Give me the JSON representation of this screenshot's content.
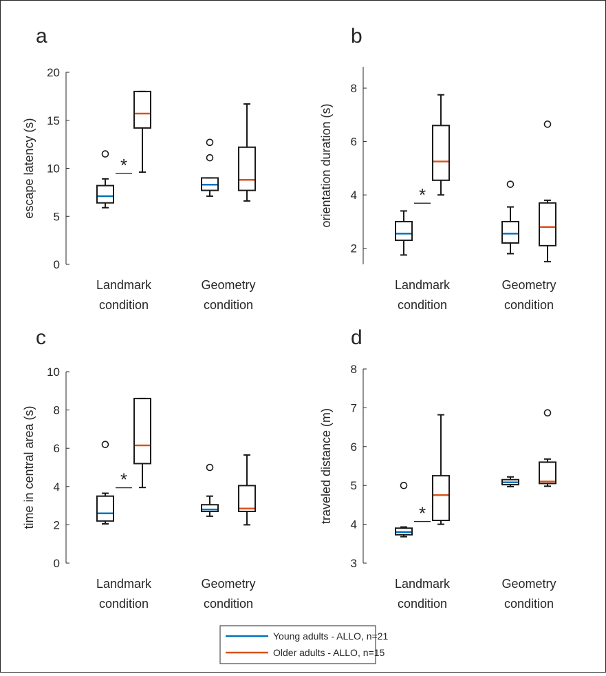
{
  "colors": {
    "young": "#0072BD",
    "older": "#D95319",
    "ink": "#262626"
  },
  "legend": {
    "entries": [
      {
        "label": "Young adults - ALLO, n=21",
        "series": "young"
      },
      {
        "label": "Older adults - ALLO, n=15",
        "series": "older"
      }
    ]
  },
  "chart_data": [
    {
      "panel_label": "a",
      "type": "box",
      "ylabel": "escape latency (s)",
      "ylim": [
        0,
        20
      ],
      "yticks": [
        0,
        5,
        10,
        15,
        20
      ],
      "categories": [
        [
          "Landmark",
          "condition"
        ],
        [
          "Geometry",
          "condition"
        ]
      ],
      "significance": [
        {
          "category": 0,
          "label": "*"
        }
      ],
      "groups": [
        {
          "category": 0,
          "series": "young",
          "whisker_low": 5.9,
          "q1": 6.4,
          "median": 7.1,
          "q3": 8.2,
          "whisker_high": 8.9,
          "outliers": [
            11.5
          ]
        },
        {
          "category": 0,
          "series": "older",
          "whisker_low": 9.6,
          "q1": 14.2,
          "median": 15.7,
          "q3": 18.0,
          "whisker_high": 18.0,
          "outliers": []
        },
        {
          "category": 1,
          "series": "young",
          "whisker_low": 7.1,
          "q1": 7.7,
          "median": 8.3,
          "q3": 9.0,
          "whisker_high": 9.0,
          "outliers": [
            11.1,
            12.7
          ]
        },
        {
          "category": 1,
          "series": "older",
          "whisker_low": 6.6,
          "q1": 7.7,
          "median": 8.8,
          "q3": 12.2,
          "whisker_high": 16.7,
          "outliers": []
        }
      ]
    },
    {
      "panel_label": "b",
      "type": "box",
      "ylabel": "orientation duration (s)",
      "ylim": [
        1.4,
        8.8
      ],
      "yticks": [
        2,
        4,
        6,
        8
      ],
      "categories": [
        [
          "Landmark",
          "condition"
        ],
        [
          "Geometry",
          "condition"
        ]
      ],
      "significance": [
        {
          "category": 0,
          "label": "*"
        }
      ],
      "groups": [
        {
          "category": 0,
          "series": "young",
          "whisker_low": 1.75,
          "q1": 2.3,
          "median": 2.55,
          "q3": 3.0,
          "whisker_high": 3.4,
          "outliers": []
        },
        {
          "category": 0,
          "series": "older",
          "whisker_low": 4.0,
          "q1": 4.55,
          "median": 5.25,
          "q3": 6.6,
          "whisker_high": 7.75,
          "outliers": []
        },
        {
          "category": 1,
          "series": "young",
          "whisker_low": 1.8,
          "q1": 2.2,
          "median": 2.55,
          "q3": 3.0,
          "whisker_high": 3.55,
          "outliers": [
            4.4
          ]
        },
        {
          "category": 1,
          "series": "older",
          "whisker_low": 1.5,
          "q1": 2.1,
          "median": 2.8,
          "q3": 3.7,
          "whisker_high": 3.8,
          "outliers": [
            6.65
          ]
        }
      ]
    },
    {
      "panel_label": "c",
      "type": "box",
      "ylabel": "time in central area (s)",
      "ylim": [
        0,
        10
      ],
      "yticks": [
        0,
        2,
        4,
        6,
        8,
        10
      ],
      "categories": [
        [
          "Landmark",
          "condition"
        ],
        [
          "Geometry",
          "condition"
        ]
      ],
      "significance": [
        {
          "category": 0,
          "label": "*"
        }
      ],
      "groups": [
        {
          "category": 0,
          "series": "young",
          "whisker_low": 2.05,
          "q1": 2.2,
          "median": 2.6,
          "q3": 3.5,
          "whisker_high": 3.65,
          "outliers": [
            6.2
          ]
        },
        {
          "category": 0,
          "series": "older",
          "whisker_low": 3.95,
          "q1": 5.2,
          "median": 6.15,
          "q3": 8.6,
          "whisker_high": 8.6,
          "outliers": []
        },
        {
          "category": 1,
          "series": "young",
          "whisker_low": 2.45,
          "q1": 2.7,
          "median": 2.8,
          "q3": 3.05,
          "whisker_high": 3.5,
          "outliers": [
            5.0
          ]
        },
        {
          "category": 1,
          "series": "older",
          "whisker_low": 2.0,
          "q1": 2.7,
          "median": 2.85,
          "q3": 4.05,
          "whisker_high": 5.65,
          "outliers": []
        }
      ]
    },
    {
      "panel_label": "d",
      "type": "box",
      "ylabel": "traveled distance (m)",
      "ylim": [
        3,
        8
      ],
      "yticks": [
        3,
        4,
        5,
        6,
        7,
        8
      ],
      "categories": [
        [
          "Landmark",
          "condition"
        ],
        [
          "Geometry",
          "condition"
        ]
      ],
      "significance": [
        {
          "category": 0,
          "label": "*"
        }
      ],
      "groups": [
        {
          "category": 0,
          "series": "young",
          "whisker_low": 3.68,
          "q1": 3.73,
          "median": 3.8,
          "q3": 3.9,
          "whisker_high": 3.93,
          "outliers": [
            5.0
          ]
        },
        {
          "category": 0,
          "series": "older",
          "whisker_low": 4.0,
          "q1": 4.1,
          "median": 4.75,
          "q3": 5.25,
          "whisker_high": 6.82,
          "outliers": []
        },
        {
          "category": 1,
          "series": "young",
          "whisker_low": 4.97,
          "q1": 5.02,
          "median": 5.08,
          "q3": 5.15,
          "whisker_high": 5.22,
          "outliers": []
        },
        {
          "category": 1,
          "series": "older",
          "whisker_low": 4.98,
          "q1": 5.05,
          "median": 5.1,
          "q3": 5.6,
          "whisker_high": 5.68,
          "outliers": [
            6.87
          ]
        }
      ]
    }
  ]
}
